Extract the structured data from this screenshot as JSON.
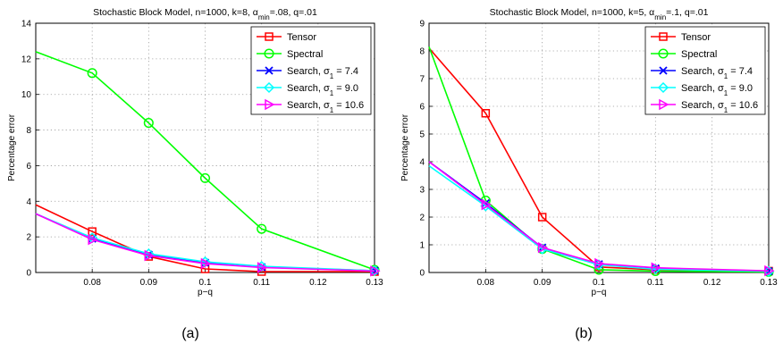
{
  "chart_data": [
    {
      "type": "line",
      "title": "Stochastic Block Model, n=1000, k=8, α_min=.08, q=.01",
      "title_parts": {
        "main": "Stochastic Block Model, n=1000, k=8, α",
        "sub": "min",
        "tail": "=.08, q=.01"
      },
      "xlabel": "p−q",
      "ylabel": "Percentage error",
      "xlim": [
        0.07,
        0.13
      ],
      "ylim": [
        0,
        14
      ],
      "xticks": [
        0.08,
        0.09,
        0.1,
        0.11,
        0.12,
        0.13
      ],
      "xticklabels": [
        "0.08",
        "0.09",
        "0.1",
        "0.11",
        "0.12",
        "0.13"
      ],
      "yticks": [
        0,
        2,
        4,
        6,
        8,
        10,
        12,
        14
      ],
      "yticklabels": [
        "0",
        "2",
        "4",
        "6",
        "8",
        "10",
        "12",
        "14"
      ],
      "grid": true,
      "legend_position": "top-right",
      "caption": "(a)",
      "x": [
        0.07,
        0.08,
        0.09,
        0.1,
        0.11,
        0.13
      ],
      "series": [
        {
          "name": "Tensor",
          "color": "#ff0000",
          "marker": "square",
          "values": [
            3.8,
            2.3,
            0.9,
            0.2,
            0.05,
            0.05
          ]
        },
        {
          "name": "Spectral",
          "color": "#00ff00",
          "marker": "circle",
          "values": [
            12.4,
            11.2,
            8.4,
            5.3,
            2.45,
            0.15
          ]
        },
        {
          "name": "Search, σ = 7.4",
          "label_parts": {
            "main": "Search, σ",
            "sub": "1",
            "tail": " = 7.4"
          },
          "color": "#0000ff",
          "marker": "x",
          "values": [
            3.3,
            1.9,
            1.0,
            0.55,
            0.3,
            0.1
          ]
        },
        {
          "name": "Search, σ = 9.0",
          "label_parts": {
            "main": "Search, σ",
            "sub": "1",
            "tail": " = 9.0"
          },
          "color": "#00ffff",
          "marker": "diamond",
          "values": [
            3.3,
            1.95,
            1.05,
            0.6,
            0.35,
            0.1
          ]
        },
        {
          "name": "Search, σ = 10.6",
          "label_parts": {
            "main": "Search, σ",
            "sub": "1",
            "tail": " = 10.6"
          },
          "color": "#ff00ff",
          "marker": "triangle-right",
          "values": [
            3.3,
            1.85,
            0.95,
            0.5,
            0.28,
            0.08
          ]
        }
      ]
    },
    {
      "type": "line",
      "title": "Stochastic Block Model, n=1000, k=5, α_min=.1, q=.01",
      "title_parts": {
        "main": "Stochastic Block Model, n=1000, k=5, α",
        "sub": "min",
        "tail": "=.1, q=.01"
      },
      "xlabel": "p−q",
      "ylabel": "Percentage error",
      "xlim": [
        0.07,
        0.13
      ],
      "ylim": [
        0,
        9
      ],
      "xticks": [
        0.08,
        0.09,
        0.1,
        0.11,
        0.12,
        0.13
      ],
      "xticklabels": [
        "0.08",
        "0.09",
        "0.1",
        "0.11",
        "0.12",
        "0.13"
      ],
      "yticks": [
        0,
        1,
        2,
        3,
        4,
        5,
        6,
        7,
        8,
        9
      ],
      "yticklabels": [
        "0",
        "1",
        "2",
        "3",
        "4",
        "5",
        "6",
        "7",
        "8",
        "9"
      ],
      "grid": true,
      "legend_position": "top-right",
      "caption": "(b)",
      "x": [
        0.07,
        0.08,
        0.09,
        0.1,
        0.11,
        0.13
      ],
      "series": [
        {
          "name": "Tensor",
          "color": "#ff0000",
          "marker": "square",
          "values": [
            8.1,
            5.75,
            2.0,
            0.2,
            0.1,
            0.05
          ]
        },
        {
          "name": "Spectral",
          "color": "#00ff00",
          "marker": "circle",
          "values": [
            8.15,
            2.6,
            0.85,
            0.1,
            0.05,
            0.02
          ]
        },
        {
          "name": "Search, σ = 7.4",
          "label_parts": {
            "main": "Search, σ",
            "sub": "1",
            "tail": " = 7.4"
          },
          "color": "#0000ff",
          "marker": "x",
          "values": [
            4.0,
            2.5,
            0.9,
            0.3,
            0.15,
            0.05
          ]
        },
        {
          "name": "Search, σ = 9.0",
          "label_parts": {
            "main": "Search, σ",
            "sub": "1",
            "tail": " = 9.0"
          },
          "color": "#00ffff",
          "marker": "diamond",
          "values": [
            3.85,
            2.4,
            0.85,
            0.28,
            0.12,
            0.04
          ]
        },
        {
          "name": "Search, σ = 10.6",
          "label_parts": {
            "main": "Search, σ",
            "sub": "1",
            "tail": " = 10.6"
          },
          "color": "#ff00ff",
          "marker": "triangle-right",
          "values": [
            4.0,
            2.45,
            0.9,
            0.32,
            0.17,
            0.06
          ]
        }
      ]
    }
  ]
}
